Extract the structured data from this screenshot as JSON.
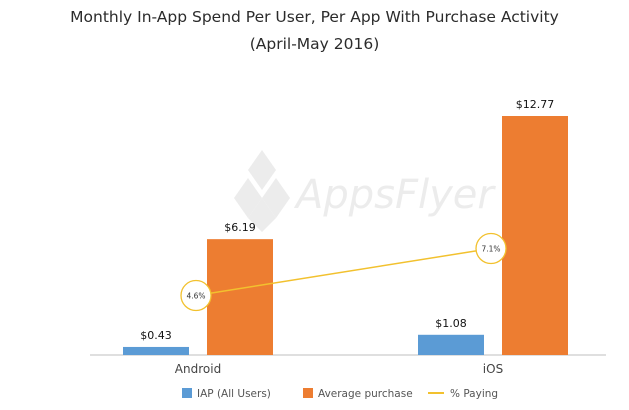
{
  "title_line1": "Monthly In-App Spend Per User, Per App With Purchase Activity",
  "title_line2": "(April-May 2016)",
  "watermark": "AppsFlyer",
  "colors": {
    "iap": "#5b9bd5",
    "avg": "#ed7d31",
    "paying": "#f2c12e",
    "axis": "#bfbfbf"
  },
  "chart_data": {
    "type": "bar",
    "categories": [
      "Android",
      "iOS"
    ],
    "series": [
      {
        "name": "IAP (All Users)",
        "values": [
          0.43,
          1.08
        ],
        "labels": [
          "$0.43",
          "$1.08"
        ]
      },
      {
        "name": "Average purchase",
        "values": [
          6.19,
          12.77
        ],
        "labels": [
          "$6.19",
          "$12.77"
        ]
      }
    ],
    "line_series": {
      "name": "% Paying",
      "values": [
        4.6,
        7.1
      ],
      "labels": [
        "4.6%",
        "7.1%"
      ]
    },
    "ylim": [
      0,
      12.77
    ],
    "grid": false,
    "legend": "bottom"
  }
}
